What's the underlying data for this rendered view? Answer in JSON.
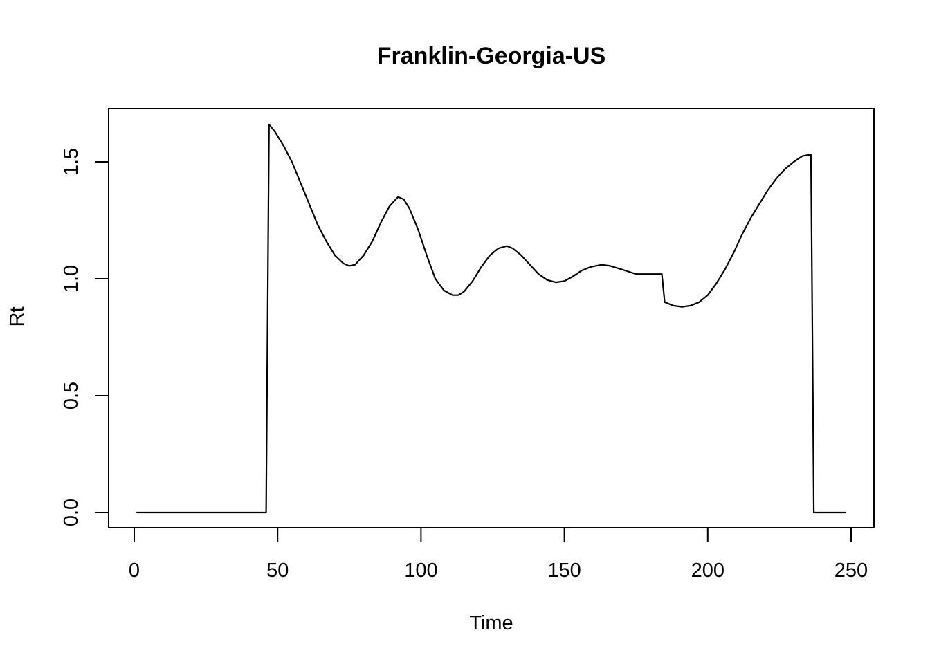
{
  "chart_data": {
    "type": "line",
    "title": "Franklin-Georgia-US",
    "xlabel": "Time",
    "ylabel": "Rt",
    "xlim": [
      0,
      250
    ],
    "ylim": [
      0,
      1.5
    ],
    "x_ticks": [
      0,
      50,
      100,
      150,
      200,
      250
    ],
    "y_ticks": [
      0.0,
      0.5,
      1.0,
      1.5
    ],
    "x_tick_labels": [
      "0",
      "50",
      "100",
      "150",
      "200",
      "250"
    ],
    "y_tick_labels": [
      "0.0",
      "0.5",
      "1.0",
      "1.5"
    ],
    "grid": false,
    "legend": "none",
    "line_color": "#000000",
    "series": [
      {
        "x": [
          1,
          46,
          47,
          49,
          52,
          55,
          58,
          61,
          64,
          67,
          70,
          73,
          75,
          77,
          80,
          83,
          86,
          89,
          92,
          94,
          96,
          99,
          102,
          105,
          108,
          111,
          113,
          115,
          118,
          121,
          124,
          127,
          130,
          132,
          135,
          138,
          141,
          144,
          147,
          150,
          153,
          156,
          159,
          163,
          166,
          170,
          175,
          180,
          184,
          185,
          188,
          191,
          194,
          197,
          200,
          203,
          206,
          209,
          212,
          215,
          218,
          221,
          224,
          227,
          230,
          233,
          235,
          236,
          237,
          248
        ],
        "y": [
          0.0,
          0.0,
          1.66,
          1.63,
          1.57,
          1.5,
          1.41,
          1.32,
          1.23,
          1.16,
          1.1,
          1.065,
          1.055,
          1.06,
          1.1,
          1.16,
          1.24,
          1.31,
          1.35,
          1.34,
          1.3,
          1.21,
          1.1,
          1.0,
          0.95,
          0.93,
          0.93,
          0.945,
          0.99,
          1.05,
          1.1,
          1.13,
          1.14,
          1.13,
          1.1,
          1.06,
          1.02,
          0.995,
          0.985,
          0.99,
          1.01,
          1.035,
          1.05,
          1.06,
          1.055,
          1.04,
          1.02,
          1.02,
          1.02,
          0.9,
          0.885,
          0.88,
          0.885,
          0.9,
          0.93,
          0.98,
          1.04,
          1.11,
          1.19,
          1.26,
          1.32,
          1.38,
          1.43,
          1.47,
          1.5,
          1.525,
          1.53,
          1.53,
          0.0,
          0.0
        ]
      }
    ]
  }
}
